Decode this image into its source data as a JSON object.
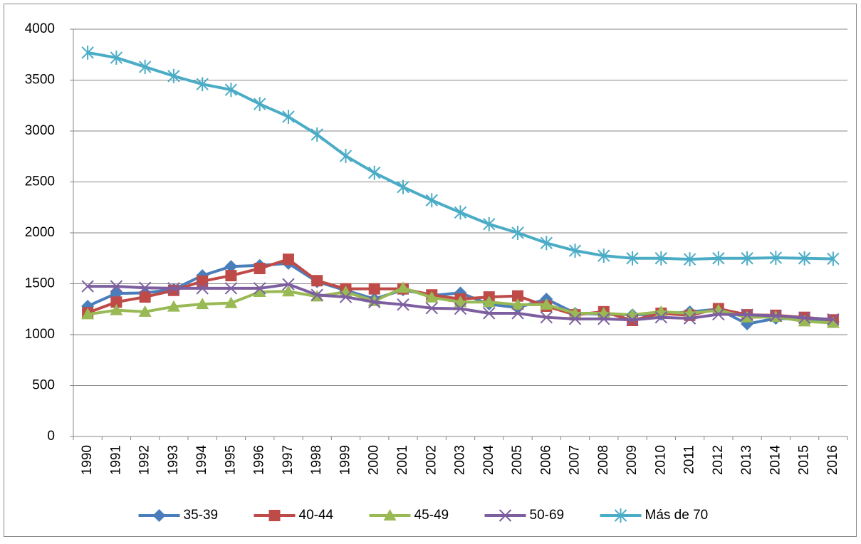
{
  "chart_data": {
    "type": "line",
    "categories": [
      "1990",
      "1991",
      "1992",
      "1993",
      "1994",
      "1995",
      "1996",
      "1997",
      "1998",
      "1999",
      "2000",
      "2001",
      "2002",
      "2003",
      "2004",
      "2005",
      "2006",
      "2007",
      "2008",
      "2009",
      "2010",
      "2011",
      "2012",
      "2013",
      "2014",
      "2015",
      "2016"
    ],
    "series": [
      {
        "name": "35-39",
        "color": "#4a7ebb",
        "marker": "diamond",
        "values": [
          1280,
          1405,
          1410,
          1445,
          1580,
          1670,
          1680,
          1700,
          1520,
          1435,
          1350,
          1440,
          1385,
          1410,
          1300,
          1265,
          1350,
          1210,
          1200,
          1195,
          1200,
          1225,
          1250,
          1105,
          1160,
          1150,
          1125
        ]
      },
      {
        "name": "40-44",
        "color": "#be4b48",
        "marker": "square",
        "values": [
          1215,
          1320,
          1370,
          1435,
          1525,
          1580,
          1650,
          1740,
          1530,
          1450,
          1450,
          1450,
          1390,
          1350,
          1370,
          1380,
          1280,
          1195,
          1225,
          1140,
          1210,
          1190,
          1255,
          1195,
          1190,
          1170,
          1145
        ]
      },
      {
        "name": "45-49",
        "color": "#98b954",
        "marker": "triangle",
        "values": [
          1200,
          1240,
          1225,
          1275,
          1300,
          1310,
          1420,
          1425,
          1375,
          1420,
          1330,
          1460,
          1365,
          1320,
          1320,
          1295,
          1295,
          1210,
          1210,
          1195,
          1225,
          1210,
          1240,
          1170,
          1175,
          1130,
          1115
        ]
      },
      {
        "name": "50-69",
        "color": "#7d5fa0",
        "marker": "x",
        "values": [
          1475,
          1475,
          1460,
          1455,
          1455,
          1455,
          1455,
          1495,
          1390,
          1370,
          1320,
          1295,
          1260,
          1255,
          1210,
          1210,
          1170,
          1155,
          1155,
          1145,
          1170,
          1160,
          1200,
          1195,
          1185,
          1165,
          1150
        ]
      },
      {
        "name": "Más de 70",
        "color": "#4bacc6",
        "marker": "star",
        "values": [
          3770,
          3720,
          3630,
          3540,
          3460,
          3405,
          3265,
          3140,
          2965,
          2755,
          2590,
          2450,
          2320,
          2200,
          2085,
          2000,
          1900,
          1825,
          1775,
          1750,
          1750,
          1740,
          1750,
          1750,
          1755,
          1750,
          1745
        ]
      }
    ],
    "ylim": [
      0,
      4000
    ],
    "yticks": [
      0,
      500,
      1000,
      1500,
      2000,
      2500,
      3000,
      3500,
      4000
    ],
    "grid": true,
    "legend": "bottom"
  }
}
